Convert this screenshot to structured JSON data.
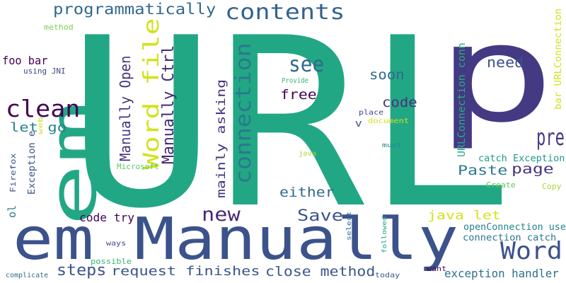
{
  "words": [
    {
      "text": "URL",
      "color": "#22a784"
    },
    {
      "text": "p",
      "color": "#443983"
    },
    {
      "text": "em Manually",
      "color": "#3b528b"
    },
    {
      "text": "em",
      "color": "#22a784"
    },
    {
      "text": "Word",
      "color": "#3b528b"
    },
    {
      "text": "clean",
      "color": "#440154"
    },
    {
      "text": "contents",
      "color": "#33638d"
    },
    {
      "text": "programmatically",
      "color": "#31688e"
    },
    {
      "text": "see",
      "color": "#31688e"
    },
    {
      "text": "new",
      "color": "#482878"
    },
    {
      "text": "pre",
      "color": "#443983"
    },
    {
      "text": "connection",
      "color": "#2a788e"
    },
    {
      "text": "Word file",
      "color": "#d2e21b"
    },
    {
      "text": "Manually Open",
      "color": "#46337f"
    },
    {
      "text": "Manually Ctrl",
      "color": "#482878"
    },
    {
      "text": "Save",
      "color": "#3b528b"
    },
    {
      "text": "steps",
      "color": "#39558c"
    },
    {
      "text": "request finishes",
      "color": "#39558c"
    },
    {
      "text": "close method",
      "color": "#39558c"
    },
    {
      "text": "free",
      "color": "#440154"
    },
    {
      "text": "code",
      "color": "#46337f"
    },
    {
      "text": "soon",
      "color": "#31688e"
    },
    {
      "text": "need",
      "color": "#3b528b"
    },
    {
      "text": "either",
      "color": "#31688e"
    },
    {
      "text": "Paste",
      "color": "#2a788e"
    },
    {
      "text": "page",
      "color": "#46337f"
    },
    {
      "text": "java let",
      "color": "#d2e21b"
    },
    {
      "text": "let go",
      "color": "#26828e"
    },
    {
      "text": "foo bar",
      "color": "#440154"
    },
    {
      "text": "code try",
      "color": "#440154"
    },
    {
      "text": "mainly asking",
      "color": "#46337f"
    },
    {
      "text": "exception handler",
      "color": "#2c718e"
    },
    {
      "text": "connection catch",
      "color": "#2a788e"
    },
    {
      "text": "openConnection use",
      "color": "#26828e"
    },
    {
      "text": "URLConnection conn",
      "color": "#26ad81"
    },
    {
      "text": "bar URLConnection",
      "color": "#d2e21b"
    },
    {
      "text": "catch Exception",
      "color": "#1e9b8a"
    },
    {
      "text": "using JNI",
      "color": "#404688"
    },
    {
      "text": "method",
      "color": "#7ad151"
    },
    {
      "text": "Exception e",
      "color": "#39558c"
    },
    {
      "text": "Firefox",
      "color": "#3b528b"
    },
    {
      "text": "ol",
      "color": "#2a788e"
    },
    {
      "text": "web",
      "color": "#d2e21b"
    },
    {
      "text": "Microsoft",
      "color": "#5ec962"
    },
    {
      "text": "java",
      "color": "#a0da39"
    },
    {
      "text": "Provide",
      "color": "#35b779"
    },
    {
      "text": "place",
      "color": "#404688"
    },
    {
      "text": "document",
      "color": "#d2e21b"
    },
    {
      "text": "V",
      "color": "#3b528b"
    },
    {
      "text": "must",
      "color": "#26828e"
    },
    {
      "text": "Create",
      "color": "#5ec962"
    },
    {
      "text": "Copy",
      "color": "#a0da39"
    },
    {
      "text": "select",
      "color": "#2c718e"
    },
    {
      "text": "followed",
      "color": "#20a386"
    },
    {
      "text": "ways",
      "color": "#3e4a89"
    },
    {
      "text": "possible",
      "color": "#35b779"
    },
    {
      "text": "complicate",
      "color": "#2c718e"
    },
    {
      "text": "today",
      "color": "#3b528b"
    },
    {
      "text": "want",
      "color": "#440154"
    }
  ]
}
